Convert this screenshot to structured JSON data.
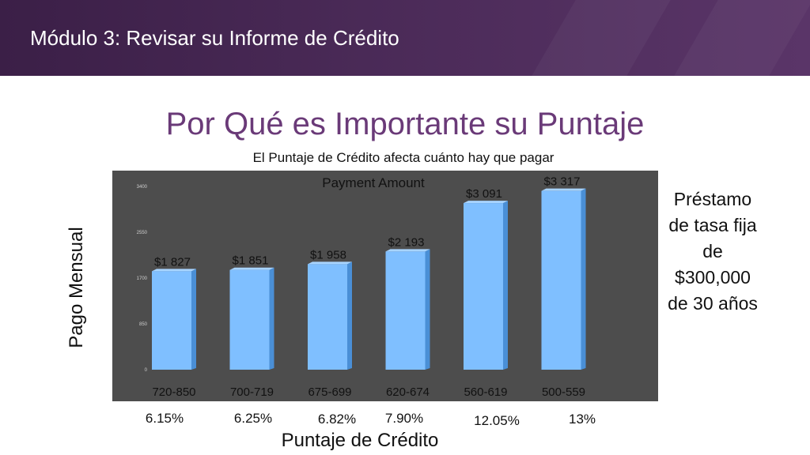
{
  "header": {
    "module_title": "Módulo 3: Revisar su Informe de Crédito"
  },
  "slide_title": "Por Qué es Importante su Puntaje",
  "colors": {
    "header": "#4a2a57",
    "title": "#6a3a78",
    "bar": "#7fbfff",
    "plot_bg": "#4d4d4d"
  },
  "chart_data": {
    "type": "bar",
    "title": "El Puntaje de Crédito afecta cuánto hay que pagar",
    "series": [
      {
        "name": "Payment Amount",
        "values": [
          1827,
          1851,
          1958,
          2193,
          3091,
          3317
        ]
      }
    ],
    "categories": [
      "720-850",
      "700-719",
      "675-699",
      "620-674",
      "560-619",
      "500-559"
    ],
    "data_labels": [
      "$1 827",
      "$1 851",
      "$1 958",
      "$2 193",
      "$3 091",
      "$3 317"
    ],
    "y_ticks": [
      "3400",
      "2550",
      "1700",
      "850",
      "0"
    ],
    "ylim": [
      0,
      3400
    ],
    "ylabel": "Pago Mensual",
    "xlabel": "Puntaje de Crédito",
    "interest_rates": [
      "6.15%",
      "6.25%",
      "6.82%",
      "7.90%",
      "12.05%",
      "13%"
    ],
    "grid": false,
    "legend": "top-center"
  },
  "side_note": [
    "Préstamo",
    "de tasa fija",
    "de",
    "$300,000",
    "de 30 años"
  ]
}
